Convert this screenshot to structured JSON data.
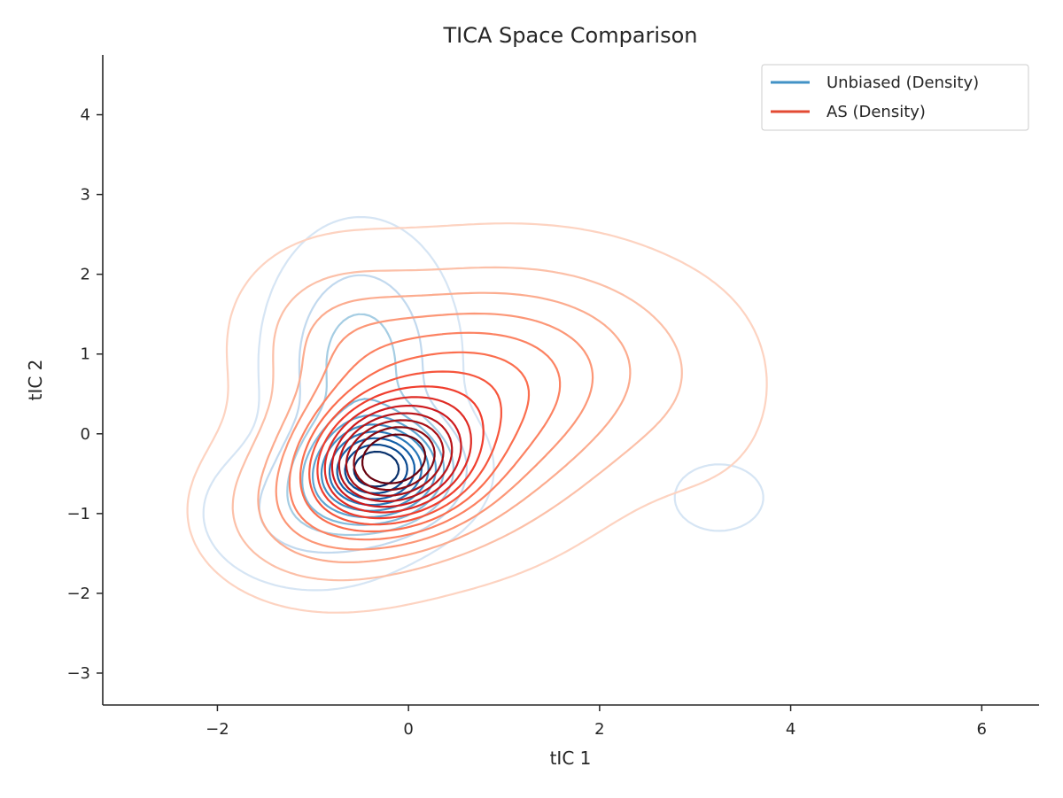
{
  "chart_data": {
    "type": "contour",
    "title": "TICA Space Comparison",
    "xlabel": "tIC 1",
    "ylabel": "tIC 2",
    "xlim": [
      -3.2,
      6.6
    ],
    "ylim": [
      -3.4,
      4.75
    ],
    "xticks": [
      -2,
      0,
      2,
      4,
      6
    ],
    "yticks": [
      -3,
      -2,
      -1,
      0,
      1,
      2,
      3,
      4
    ],
    "xtick_labels": [
      "−2",
      "0",
      "2",
      "4",
      "6"
    ],
    "ytick_labels": [
      "−3",
      "−2",
      "−1",
      "0",
      "1",
      "2",
      "3",
      "4"
    ],
    "grid": false,
    "legend_position": "top-right",
    "series": [
      {
        "name": "Unbiased (Density)",
        "color": "#4292c6",
        "colormap": "Blues",
        "contour_levels": 10,
        "components": [
          {
            "center": [
              -0.3,
              -0.45
            ],
            "spread": [
              0.45,
              0.4
            ],
            "weight": 1.0
          },
          {
            "center": [
              -0.5,
              0.9
            ],
            "spread": [
              0.5,
              0.85
            ],
            "weight": 0.32
          },
          {
            "center": [
              -1.0,
              -1.0
            ],
            "spread": [
              0.6,
              0.5
            ],
            "weight": 0.2
          },
          {
            "center": [
              3.25,
              -0.8
            ],
            "spread": [
              0.5,
              0.45
            ],
            "weight": 0.05
          },
          {
            "center": [
              2.5,
              1.8
            ],
            "spread": [
              0.35,
              0.3
            ],
            "weight": 0.03
          }
        ]
      },
      {
        "name": "AS (Density)",
        "color": "#e34a33",
        "colormap": "Reds",
        "contour_levels": 14,
        "components": [
          {
            "center": [
              -0.2,
              -0.35
            ],
            "spread": [
              0.55,
              0.5
            ],
            "weight": 1.0
          },
          {
            "center": [
              0.4,
              0.3
            ],
            "spread": [
              0.9,
              0.95
            ],
            "weight": 0.55
          },
          {
            "center": [
              1.7,
              0.9
            ],
            "spread": [
              0.9,
              0.85
            ],
            "weight": 0.22
          },
          {
            "center": [
              -0.9,
              -1.0
            ],
            "spread": [
              0.7,
              0.6
            ],
            "weight": 0.3
          },
          {
            "center": [
              -0.8,
              1.3
            ],
            "spread": [
              0.6,
              0.65
            ],
            "weight": 0.15
          },
          {
            "center": [
              3.2,
              0.4
            ],
            "spread": [
              0.6,
              1.0
            ],
            "weight": 0.04
          }
        ]
      }
    ]
  }
}
